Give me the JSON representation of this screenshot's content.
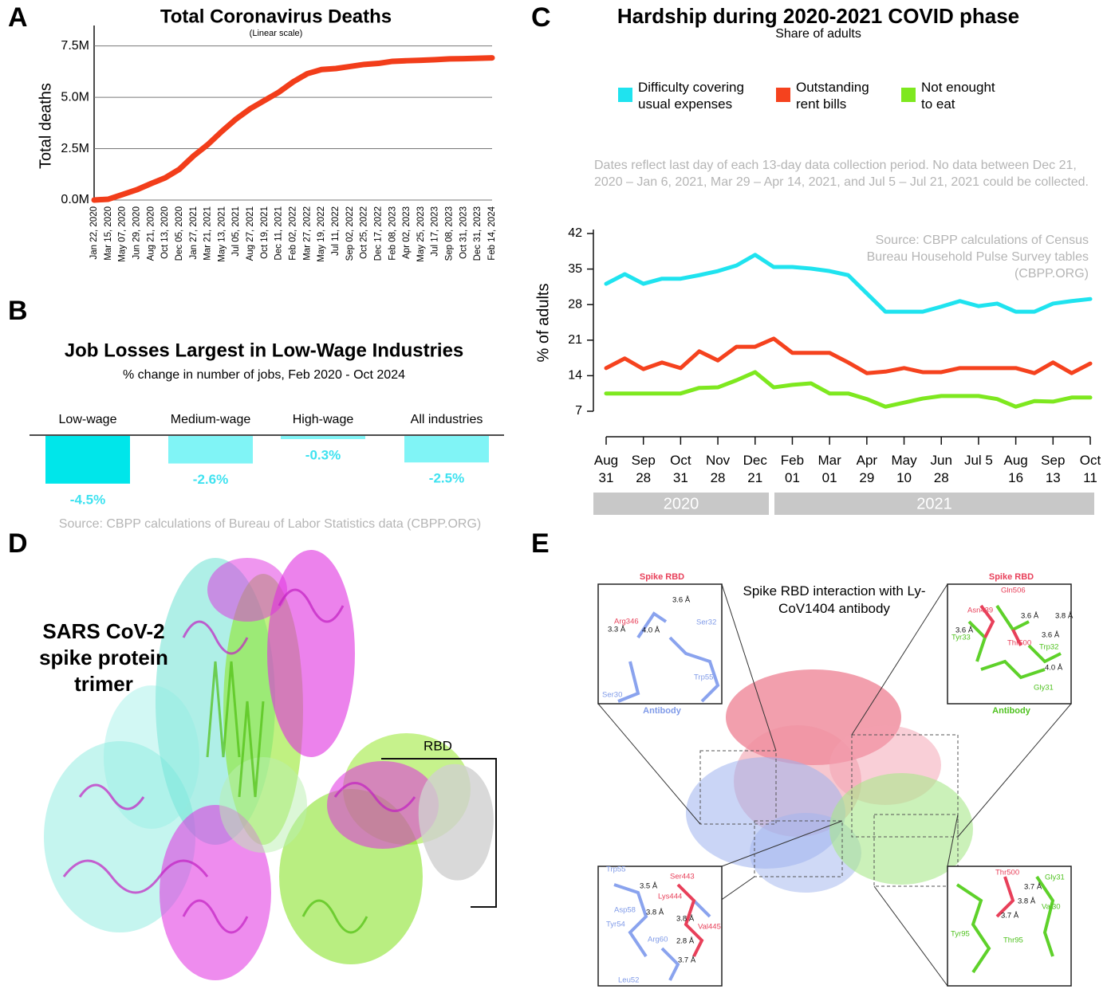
{
  "panel_labels": [
    "A",
    "B",
    "C",
    "D",
    "E"
  ],
  "chart_data": [
    {
      "type": "line",
      "title": "Total Coronavirus Deaths",
      "subtitle": "(Linear scale)",
      "y_label": "Total deaths",
      "categories": [
        "Jan 22, 2020",
        "Mar 15, 2020",
        "May 07, 2020",
        "Jun 29, 2020",
        "Aug 21, 2020",
        "Oct 13, 2020",
        "Dec 05, 2020",
        "Jan 27, 2021",
        "Mar 21, 2021",
        "May 13, 2021",
        "Jul 05, 2021",
        "Aug 27, 2021",
        "Oct 19, 2021",
        "Dec 11, 2021",
        "Feb 02, 2022",
        "Mar 27, 2022",
        "May 19, 2022",
        "Jul 11, 2022",
        "Sep 02, 2022",
        "Oct 25, 2022",
        "Dec 17, 2022",
        "Feb 08, 2023",
        "Apr 02, 2023",
        "May 25, 2023",
        "Jul 17, 2023",
        "Sep 08, 2023",
        "Oct 31, 2023",
        "Dec 31, 2023",
        "Feb 14, 2024"
      ],
      "values": [
        0,
        0.04,
        0.27,
        0.5,
        0.8,
        1.08,
        1.5,
        2.15,
        2.7,
        3.35,
        3.95,
        4.45,
        4.85,
        5.25,
        5.75,
        6.15,
        6.35,
        6.4,
        6.5,
        6.6,
        6.65,
        6.75,
        6.78,
        6.8,
        6.83,
        6.87,
        6.88,
        6.9,
        6.92
      ],
      "color": "#f23d1a",
      "ylim": [
        0,
        8.3
      ],
      "yticks": [
        {
          "value": 0,
          "label": "0.0M"
        },
        {
          "value": 2.5,
          "label": "2.5M"
        },
        {
          "value": 5,
          "label": "5.0M"
        },
        {
          "value": 7.5,
          "label": "7.5M"
        }
      ],
      "grid": true
    },
    {
      "type": "bar",
      "title": "Job Losses Largest in Low-Wage Industries",
      "subtitle": "% change in number of jobs, Feb 2020 - Oct 2024",
      "categories": [
        "Low-wage",
        "Medium-wage",
        "High-wage",
        "All industries"
      ],
      "values": [
        -4.5,
        -2.6,
        -0.3,
        -2.5
      ],
      "value_labels": [
        "-4.5%",
        "-2.6%",
        "-0.3%",
        "-2.5%"
      ],
      "colors": [
        "#00e6ea",
        "#80f4f6",
        "#80f4f6",
        "#80f4f6"
      ],
      "label_color": "#3fe2f0",
      "source": "Source: CBPP calculations of Bureau of Labor Statistics data (CBPP.ORG)"
    },
    {
      "type": "line",
      "title": "Hardship during 2020-2021 COVID phase",
      "subtitle": "Share of adults",
      "y_label": "% of adults",
      "note": "Dates reflect last day of each 13-day data collection period. No data between Dec 21, 2020 – Jan 6, 2021, Mar 29 – Apr 14, 2021, and Jul 5 – Jul 21, 2021 could be collected.",
      "source": "Source: CBPP calculations of Census Bureau Household Pulse Survey tables (CBPP.ORG)",
      "categories": [
        "Aug 31",
        null,
        "Sep 28",
        null,
        "Oct 31",
        null,
        "Nov 28",
        null,
        "Dec 21",
        null,
        "Feb 01",
        null,
        "Mar 01",
        null,
        "Apr 29",
        null,
        "May 10",
        null,
        "Jun 28",
        null,
        "Jul 5",
        null,
        "Aug 16",
        null,
        "Sep 13",
        null,
        "Oct 11"
      ],
      "series": [
        {
          "name": "Difficulty covering usual expenses",
          "color": "#1fe3ef",
          "values": [
            32.1,
            34.0,
            32.1,
            33.1,
            33.1,
            33.8,
            34.6,
            35.7,
            37.8,
            35.4,
            35.4,
            35.1,
            34.6,
            33.8,
            30.2,
            26.6,
            26.6,
            26.6,
            27.6,
            28.7,
            27.7,
            28.2,
            26.6,
            26.6,
            28.2,
            28.7,
            29.1
          ]
        },
        {
          "name": "Outstanding rent bills",
          "color": "#f5421e",
          "values": [
            15.5,
            17.4,
            15.3,
            16.6,
            15.5,
            18.8,
            17.0,
            19.7,
            19.7,
            21.3,
            18.5,
            18.5,
            18.5,
            16.6,
            14.5,
            14.8,
            15.5,
            14.7,
            14.7,
            15.5,
            15.5,
            15.5,
            15.5,
            14.5,
            16.6,
            14.5,
            16.4
          ]
        },
        {
          "name": "Not enought to eat",
          "color": "#7ee81f",
          "values": [
            10.5,
            10.5,
            10.5,
            10.5,
            10.5,
            11.6,
            11.7,
            13.1,
            14.7,
            11.7,
            12.2,
            12.5,
            10.5,
            10.5,
            9.4,
            7.9,
            8.7,
            9.5,
            10.0,
            10.0,
            10.0,
            9.4,
            7.9,
            9.0,
            8.9,
            9.7,
            9.7
          ]
        }
      ],
      "ylim": [
        7,
        42
      ],
      "yticks": [
        7,
        14,
        21,
        28,
        35,
        42
      ],
      "grid": false,
      "year_labels": [
        "2020",
        "2021"
      ]
    }
  ],
  "structure_d": {
    "title": "SARS CoV-2 spike protein trimer",
    "rbd_label": "RBD"
  },
  "structure_e": {
    "title": "Spike RBD interaction with Ly-CoV1404 antibody",
    "insets": [
      {
        "top": "Spike RBD",
        "bottom": "Antibody",
        "labels": [
          "Arg346",
          "3.6 Å",
          "Ser32",
          "3.3 Å",
          "4.0 Å",
          "Trp55",
          "Ser30"
        ]
      },
      {
        "top": "Spike RBD",
        "bottom": "Antibody",
        "labels": [
          "Gln506",
          "Asn439",
          "3.6 Å",
          "3.8 Å",
          "3.6 Å",
          "Tyr33",
          "Thr500",
          "3.6 Å",
          "Trp32",
          "4.0 Å",
          "Gly31"
        ]
      },
      {
        "labels": [
          "Trp55",
          "Ser443",
          "3.5 Å",
          "Lys444",
          "Asp58",
          "3.8 Å",
          "3.8 Å",
          "Tyr54",
          "Val445",
          "Arg60",
          "2.8 Å",
          "3.7 Å",
          "Leu52"
        ]
      },
      {
        "labels": [
          "Thr500",
          "Gly31",
          "3.7 Å",
          "3.8 Å",
          "Val30",
          "3.7 Å",
          "Tyr95",
          "Thr95"
        ]
      }
    ]
  }
}
